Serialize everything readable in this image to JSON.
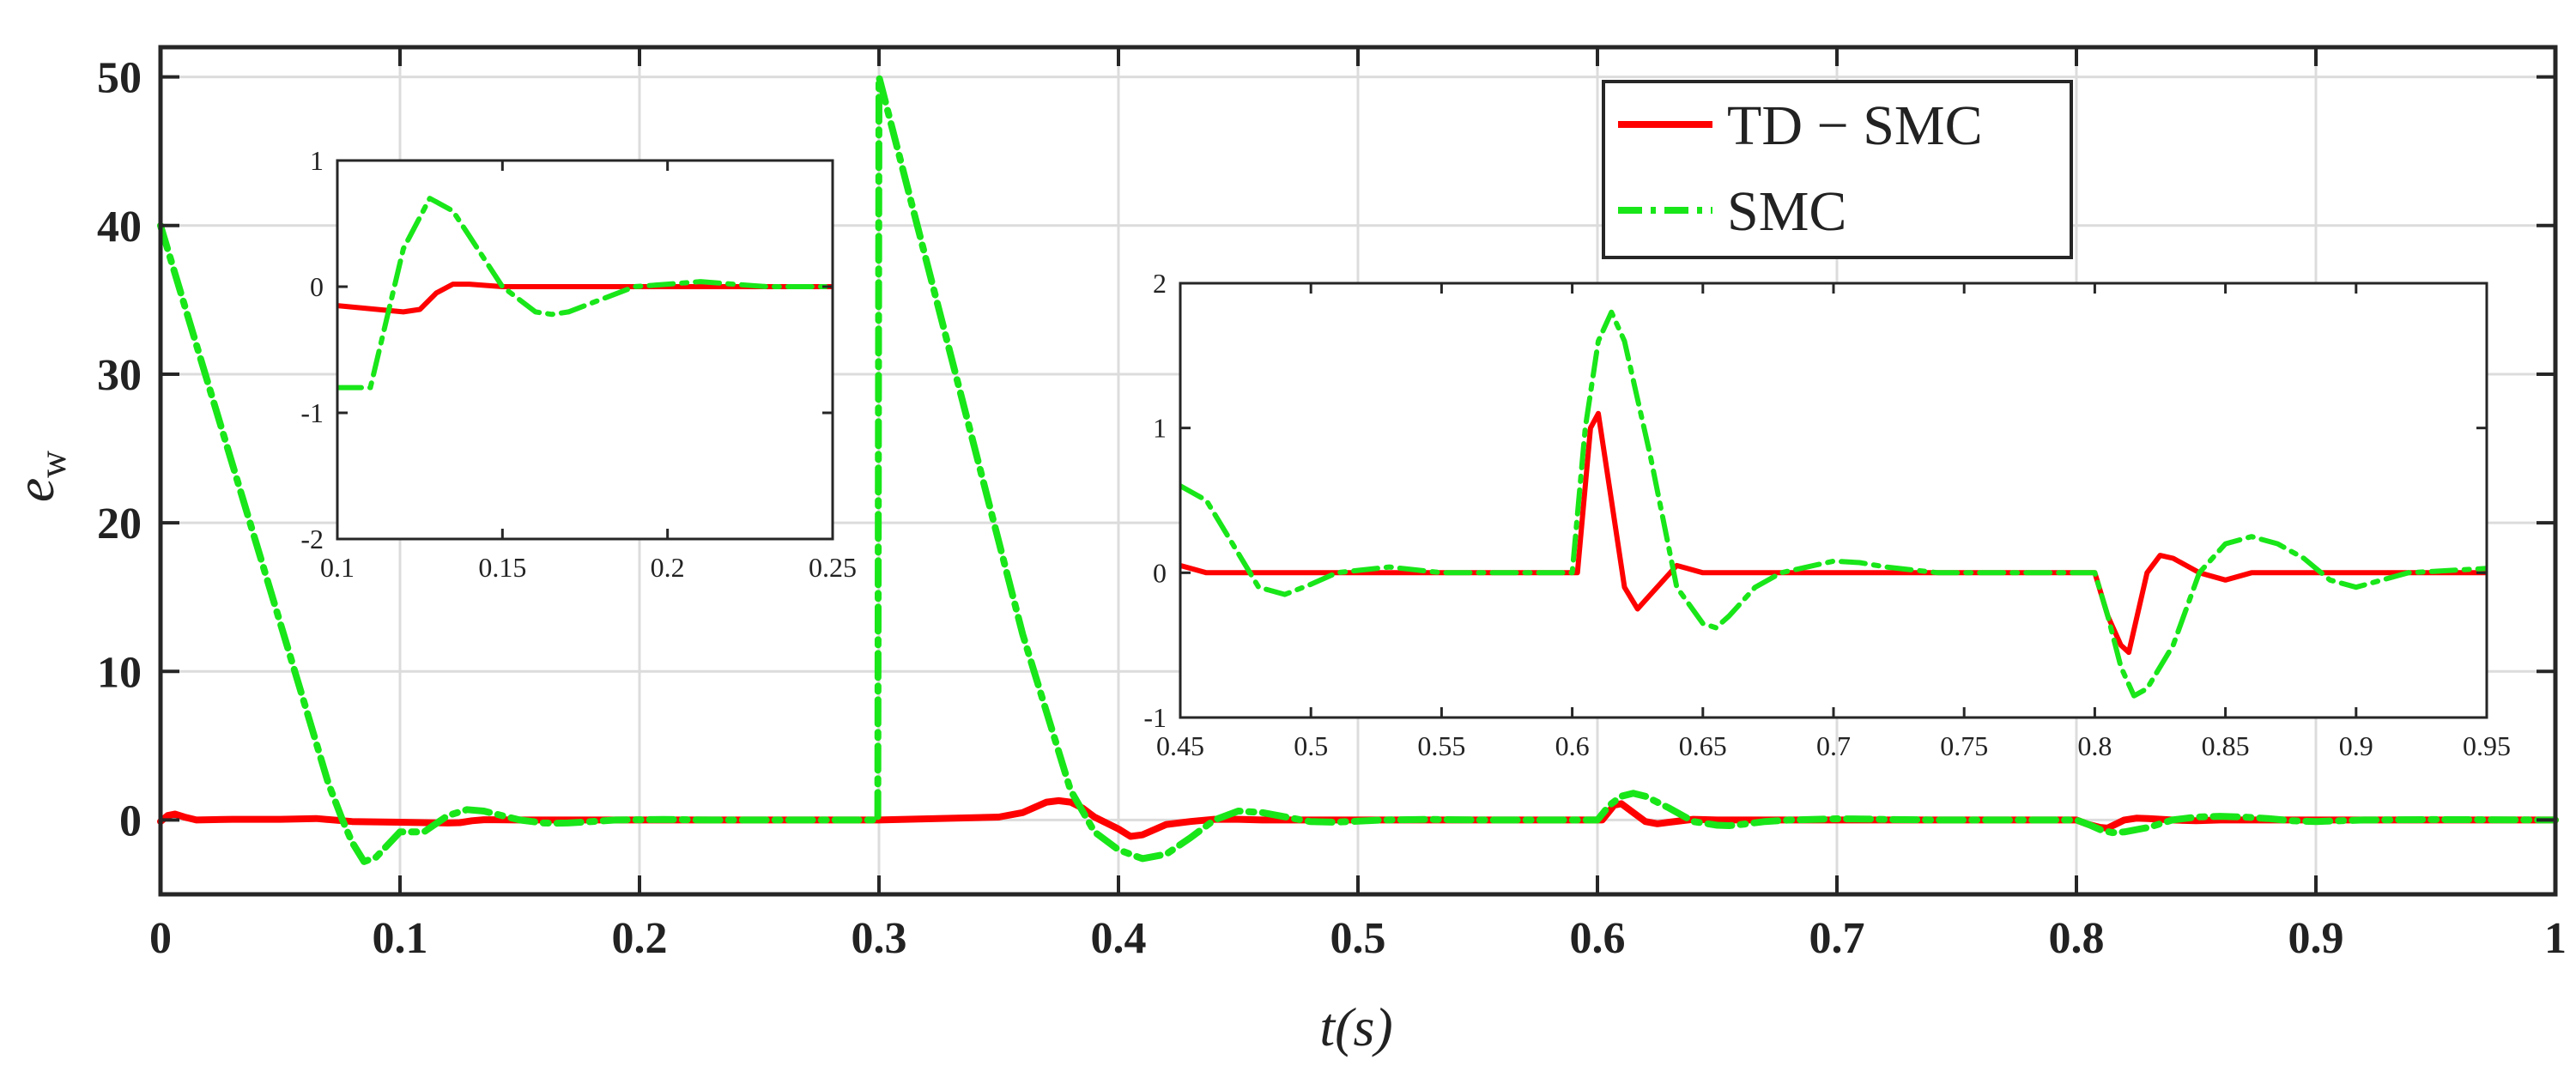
{
  "chart_data": {
    "type": "line",
    "title": "",
    "xlabel": "t(s)",
    "ylabel": "e_w",
    "xlim": [
      0,
      1
    ],
    "ylim": [
      -5,
      52
    ],
    "grid": true,
    "legend": {
      "position": "top-right-inside"
    },
    "xticks": [
      0,
      0.1,
      0.2,
      0.3,
      0.4,
      0.5,
      0.6,
      0.7,
      0.8,
      0.9,
      1
    ],
    "xtick_labels": [
      "0",
      "0.1",
      "0.2",
      "0.3",
      "0.4",
      "0.5",
      "0.6",
      "0.7",
      "0.8",
      "0.9",
      "1"
    ],
    "yticks": [
      0,
      10,
      20,
      30,
      40,
      50
    ],
    "ytick_labels": [
      "0",
      "10",
      "20",
      "30",
      "40",
      "50"
    ],
    "series": [
      {
        "name": "TD − SMC",
        "color": "#ff0000",
        "style": "solid",
        "x": [
          0,
          0.003,
          0.006,
          0.01,
          0.015,
          0.03,
          0.05,
          0.065,
          0.08,
          0.1,
          0.12,
          0.125,
          0.13,
          0.135,
          0.14,
          0.15,
          0.16,
          0.2,
          0.25,
          0.3,
          0.35,
          0.36,
          0.37,
          0.375,
          0.38,
          0.385,
          0.39,
          0.4,
          0.405,
          0.41,
          0.42,
          0.43,
          0.44,
          0.45,
          0.46,
          0.48,
          0.5,
          0.6,
          0.602,
          0.607,
          0.61,
          0.615,
          0.62,
          0.625,
          0.63,
          0.64,
          0.65,
          0.66,
          0.7,
          0.8,
          0.805,
          0.81,
          0.813,
          0.82,
          0.825,
          0.83,
          0.84,
          0.85,
          0.86,
          0.9,
          0.95,
          1
        ],
        "y": [
          -0.1,
          0.3,
          0.4,
          0.2,
          0.0,
          0.05,
          0.05,
          0.1,
          -0.1,
          -0.15,
          -0.2,
          -0.18,
          -0.05,
          0.02,
          0.02,
          0.0,
          0.0,
          0.0,
          0.0,
          0.0,
          0.2,
          0.5,
          1.2,
          1.3,
          1.2,
          0.8,
          0.2,
          -0.6,
          -1.1,
          -1.0,
          -0.3,
          -0.1,
          0.05,
          0.05,
          0.0,
          0.0,
          0.0,
          0.0,
          0.0,
          1.0,
          1.1,
          0.5,
          -0.1,
          -0.25,
          -0.15,
          0.05,
          0.0,
          0.0,
          0.0,
          0.0,
          -0.3,
          -0.5,
          -0.55,
          0.0,
          0.12,
          0.1,
          0.0,
          -0.05,
          0.0,
          0.0,
          0.0,
          0.0
        ]
      },
      {
        "name": "SMC",
        "color": "#19e619",
        "style": "dash-dot",
        "x": [
          0,
          0.02,
          0.04,
          0.06,
          0.07,
          0.076,
          0.08,
          0.085,
          0.09,
          0.1,
          0.11,
          0.12,
          0.128,
          0.135,
          0.14,
          0.15,
          0.16,
          0.165,
          0.17,
          0.18,
          0.19,
          0.2,
          0.21,
          0.22,
          0.23,
          0.25,
          0.29,
          0.2995,
          0.3,
          0.32,
          0.34,
          0.36,
          0.38,
          0.39,
          0.4,
          0.41,
          0.42,
          0.43,
          0.44,
          0.45,
          0.46,
          0.47,
          0.48,
          0.49,
          0.5,
          0.51,
          0.53,
          0.55,
          0.6,
          0.605,
          0.61,
          0.615,
          0.62,
          0.63,
          0.64,
          0.65,
          0.655,
          0.66,
          0.67,
          0.68,
          0.7,
          0.71,
          0.72,
          0.74,
          0.76,
          0.8,
          0.805,
          0.81,
          0.815,
          0.82,
          0.83,
          0.84,
          0.85,
          0.86,
          0.87,
          0.88,
          0.89,
          0.9,
          0.92,
          0.95,
          1
        ],
        "y": [
          40,
          29.3,
          18.6,
          7.9,
          2.5,
          0.0,
          -1.5,
          -2.8,
          -2.5,
          -0.8,
          -0.8,
          0.3,
          0.7,
          0.6,
          0.4,
          0.0,
          -0.2,
          -0.22,
          -0.2,
          -0.1,
          0.0,
          0.02,
          0.04,
          0.02,
          0.0,
          0.0,
          0.0,
          0.0,
          50,
          37.5,
          25,
          12.5,
          2.0,
          -0.8,
          -2.0,
          -2.6,
          -2.3,
          -1.2,
          0.0,
          0.6,
          0.5,
          0.2,
          -0.1,
          -0.15,
          -0.08,
          0.0,
          0.04,
          0.0,
          0.0,
          1.0,
          1.6,
          1.8,
          1.6,
          0.8,
          -0.1,
          -0.35,
          -0.38,
          -0.3,
          -0.1,
          0.0,
          0.08,
          0.07,
          0.04,
          0.0,
          0.0,
          0.0,
          -0.3,
          -0.65,
          -0.85,
          -0.8,
          -0.5,
          0.0,
          0.2,
          0.25,
          0.2,
          0.1,
          -0.05,
          -0.1,
          0.0,
          0.03,
          0.0
        ]
      }
    ],
    "insets": [
      {
        "xlim": [
          0.1,
          0.25
        ],
        "ylim": [
          -2,
          1
        ],
        "xticks": [
          0.1,
          0.15,
          0.2,
          0.25
        ],
        "xtick_labels": [
          "0.1",
          "0.15",
          "0.2",
          "0.25"
        ],
        "yticks": [
          -2,
          -1,
          0,
          1
        ],
        "ytick_labels": [
          "-2",
          "-1",
          "0",
          "1"
        ]
      },
      {
        "xlim": [
          0.45,
          0.95
        ],
        "ylim": [
          -1,
          2
        ],
        "xticks": [
          0.45,
          0.5,
          0.55,
          0.6,
          0.65,
          0.7,
          0.75,
          0.8,
          0.85,
          0.9,
          0.95
        ],
        "xtick_labels": [
          "0.45",
          "0.5",
          "0.55",
          "0.6",
          "0.65",
          "0.7",
          "0.75",
          "0.8",
          "0.85",
          "0.9",
          "0.95"
        ],
        "yticks": [
          -1,
          0,
          1,
          2
        ],
        "ytick_labels": [
          "-1",
          "0",
          "1",
          "2"
        ]
      }
    ]
  }
}
